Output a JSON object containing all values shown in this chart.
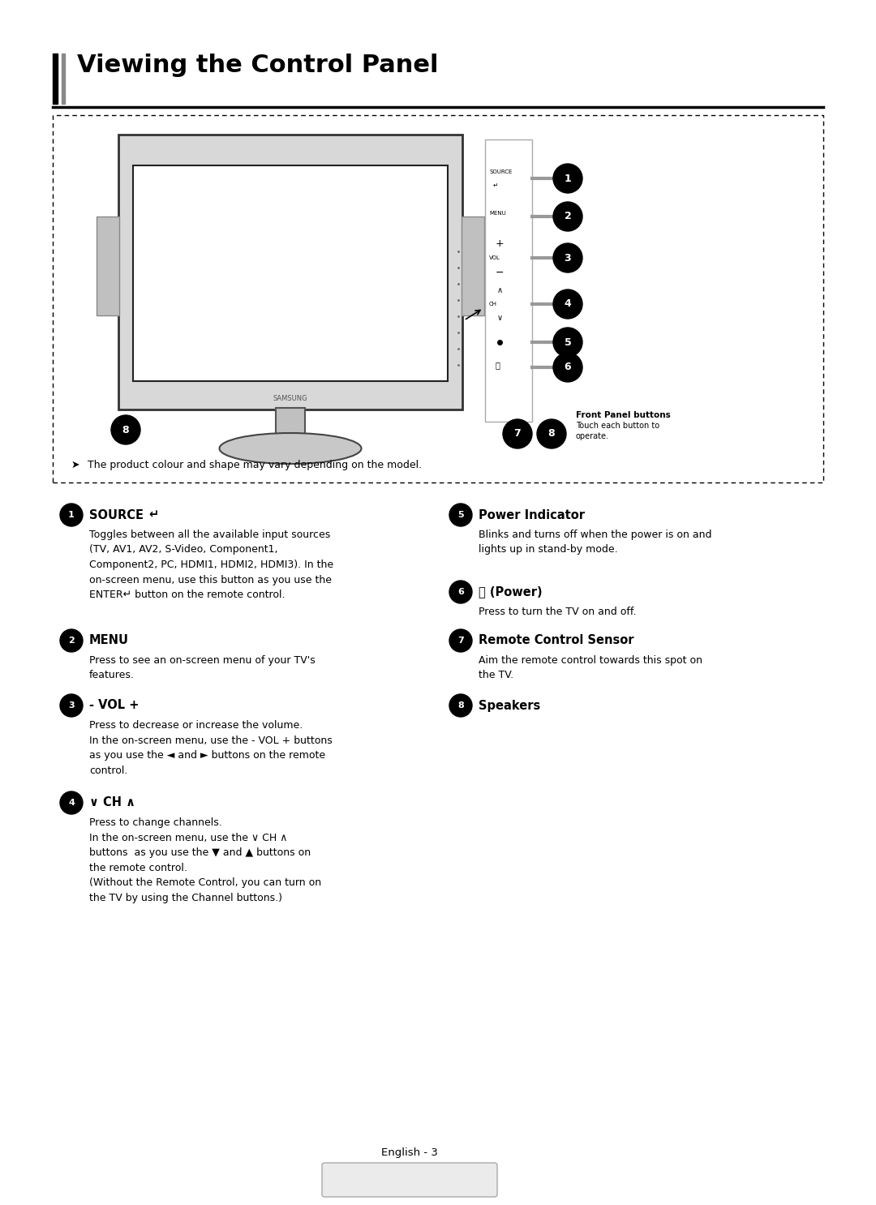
{
  "title": "Viewing the Control Panel",
  "bg_color": "#ffffff",
  "note": "The product colour and shape may vary depending on the model.",
  "footer": "English - 3",
  "items_left": [
    {
      "num": "1",
      "label": "SOURCE ",
      "label_extra": "↵",
      "desc_normal": "Toggles between all the available input sources\n(TV, AV1, AV2, S-Video, Component1,\nComponent2, PC, HDMI1, HDMI2, HDMI3). In the\non-screen menu, use this button as you use the",
      "desc_bold": "ENTER↵",
      "desc_after": " button on the remote control."
    },
    {
      "num": "2",
      "label": "MENU",
      "label_extra": "",
      "desc_normal": "Press to see an on-screen menu of your TV's\nfeatures.",
      "desc_bold": "",
      "desc_after": ""
    },
    {
      "num": "3",
      "label": "- VOL +",
      "label_extra": "",
      "desc_normal": "Press to decrease or increase the volume.\nIn the on-screen menu, use the - VOL + buttons\nas you use the ◄ and ► buttons on the remote\ncontrol.",
      "desc_bold": "",
      "desc_after": ""
    },
    {
      "num": "4",
      "label": "∨ CH ∧",
      "label_extra": "",
      "desc_normal": "Press to change channels.\nIn the on-screen menu, use the ∨ CH ∧\nbuttons  as you use the ▼ and ▲ buttons on\nthe remote control.\n(Without the Remote Control, you can turn on\nthe TV by using the Channel buttons.)",
      "desc_bold": "",
      "desc_after": ""
    }
  ],
  "items_right": [
    {
      "num": "5",
      "label": "Power Indicator",
      "label_extra": "",
      "desc_normal": "Blinks and turns off when the power is on and\nlights up in stand-by mode.",
      "desc_bold": "",
      "desc_after": ""
    },
    {
      "num": "6",
      "label": "⏻ (Power)",
      "label_extra": "",
      "desc_normal": "Press to turn the TV on and off.",
      "desc_bold": "",
      "desc_after": ""
    },
    {
      "num": "7",
      "label": "Remote Control Sensor",
      "label_extra": "",
      "desc_normal": "Aim the remote control towards this spot on\nthe TV.",
      "desc_bold": "",
      "desc_after": ""
    },
    {
      "num": "8",
      "label": "Speakers",
      "label_extra": "",
      "desc_normal": "",
      "desc_bold": "",
      "desc_after": ""
    }
  ]
}
